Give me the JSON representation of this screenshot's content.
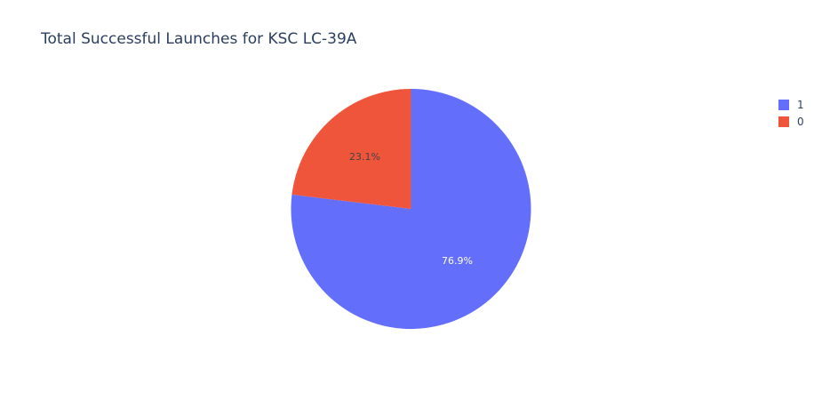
{
  "chart_data": {
    "type": "pie",
    "title": "Total Successful Launches for KSC LC-39A",
    "categories": [
      "1",
      "0"
    ],
    "values": [
      76.9,
      23.1
    ],
    "labels_text": [
      "76.9%",
      "23.1%"
    ],
    "colors": [
      "#636efa",
      "#ef553b"
    ],
    "label_colors": [
      "#ffffff",
      "#444444"
    ],
    "legend_position": "top-right"
  },
  "legend": {
    "items": [
      {
        "label": "1",
        "color": "#636efa"
      },
      {
        "label": "0",
        "color": "#ef553b"
      }
    ]
  }
}
